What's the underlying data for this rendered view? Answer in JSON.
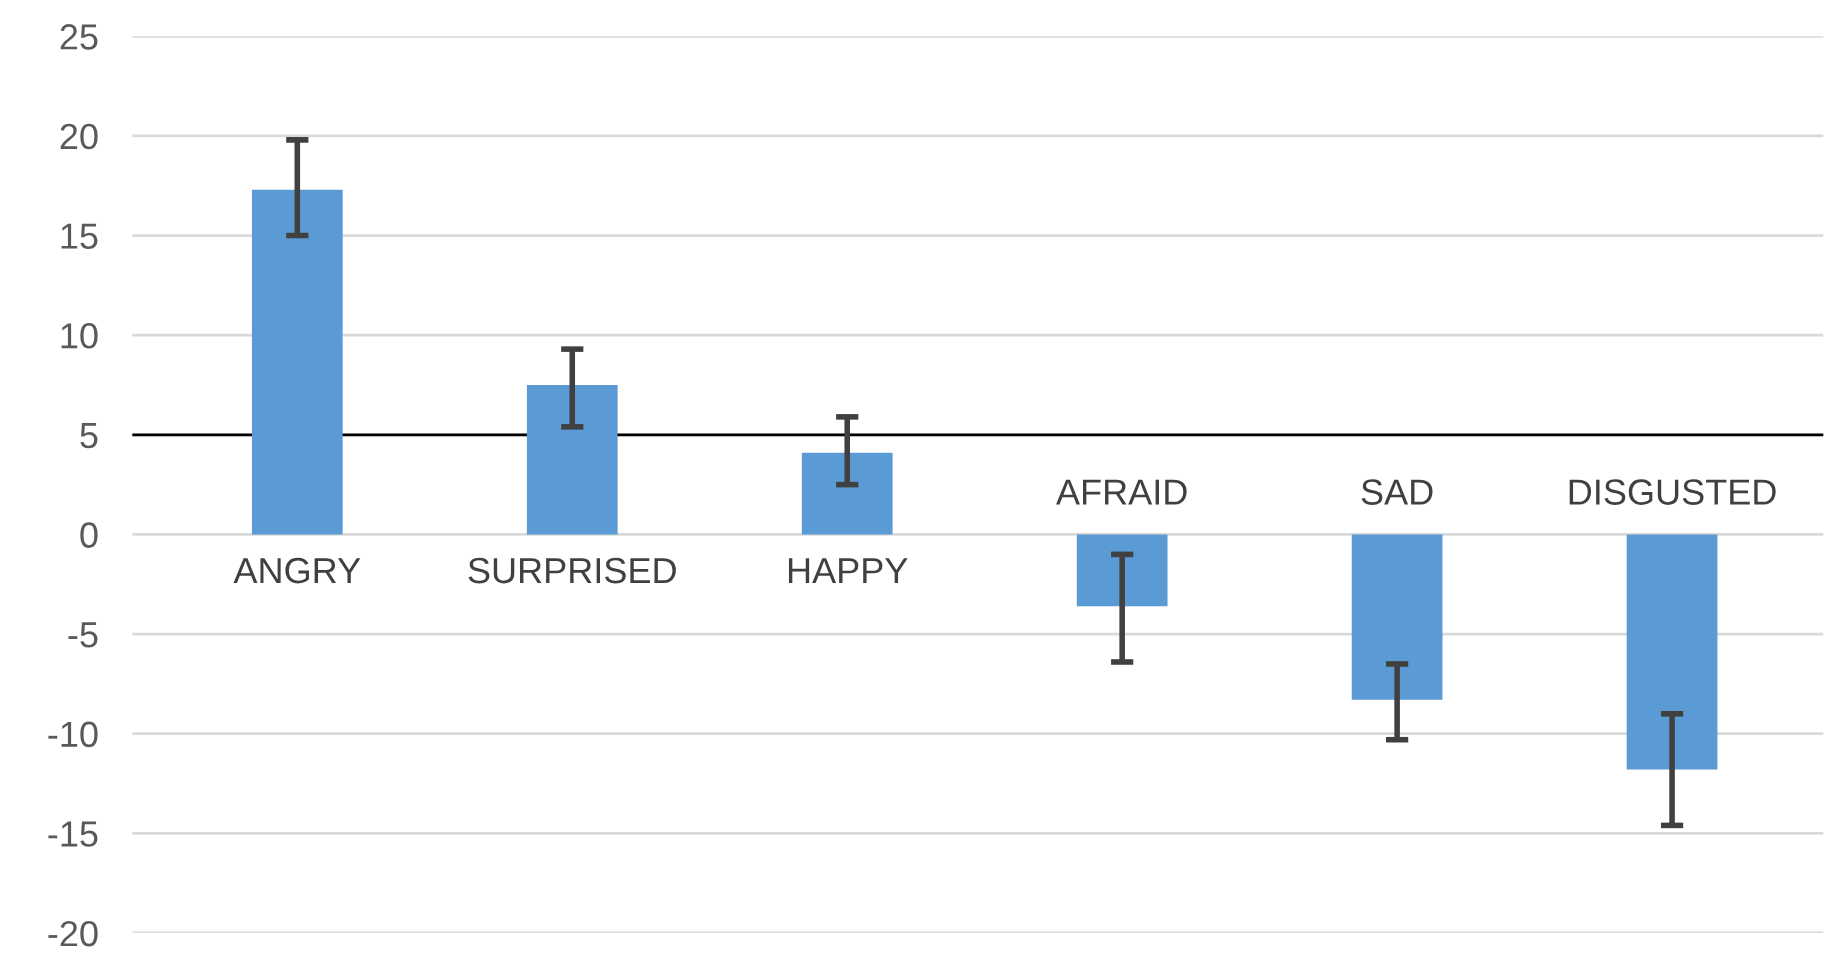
{
  "chart_data": {
    "type": "bar",
    "categories": [
      "ANGRY",
      "SURPRISED",
      "HAPPY",
      "AFRAID",
      "SAD",
      "DISGUSTED"
    ],
    "values": [
      17.3,
      7.5,
      4.1,
      -3.6,
      -8.3,
      -11.8
    ],
    "errors": [
      [
        15.0,
        19.8
      ],
      [
        5.4,
        9.3
      ],
      [
        2.5,
        5.9
      ],
      [
        -6.4,
        -1.0
      ],
      [
        -10.3,
        -6.5
      ],
      [
        -14.6,
        -9.0
      ]
    ],
    "color": "#5b9bd5",
    "ylim": [
      -20,
      25
    ],
    "yticks": [
      -20,
      -15,
      -10,
      -5,
      0,
      5,
      10,
      15,
      20,
      25
    ],
    "grid": "y",
    "ref_lines": [
      {
        "axis": "y",
        "value": 5,
        "color": "#000000"
      }
    ]
  }
}
